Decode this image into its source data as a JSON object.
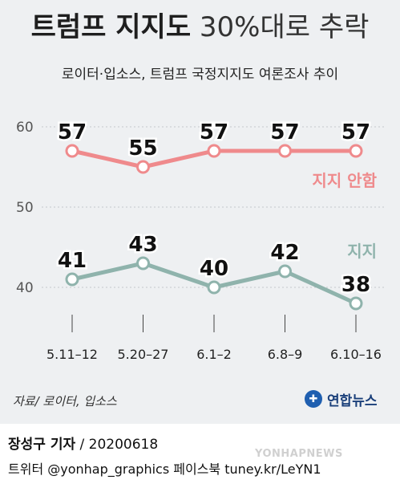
{
  "header": {
    "title_bold": "트럼프 지지도",
    "title_light": "30%대로 추락",
    "subtitle": "로이터·입소스, 트럼프 국정지지도 여론조사 추이"
  },
  "chart_data": {
    "type": "line",
    "categories": [
      "5.11–12",
      "5.20–27",
      "6.1–2",
      "6.8–9",
      "6.10–16"
    ],
    "ylim": [
      35,
      63
    ],
    "yticks": [
      40,
      50,
      60
    ],
    "grid": true,
    "series": [
      {
        "name": "지지 안함",
        "values": [
          57,
          55,
          57,
          57,
          57
        ],
        "color": "#ef8a8c",
        "point_fill": "#ffffff"
      },
      {
        "name": "지지",
        "values": [
          41,
          43,
          40,
          42,
          38
        ],
        "color": "#8fb3ac",
        "point_fill": "#ffffff"
      }
    ]
  },
  "footer": {
    "source": "자료/ 로이터, 입소스",
    "brand": "연합뉴스",
    "author": "장성구 기자",
    "date": " / 20200618",
    "social": "트위터 @yonhap_graphics  페이스북 tuney.kr/LeYN1",
    "watermark": "YONHAPNEWS"
  }
}
